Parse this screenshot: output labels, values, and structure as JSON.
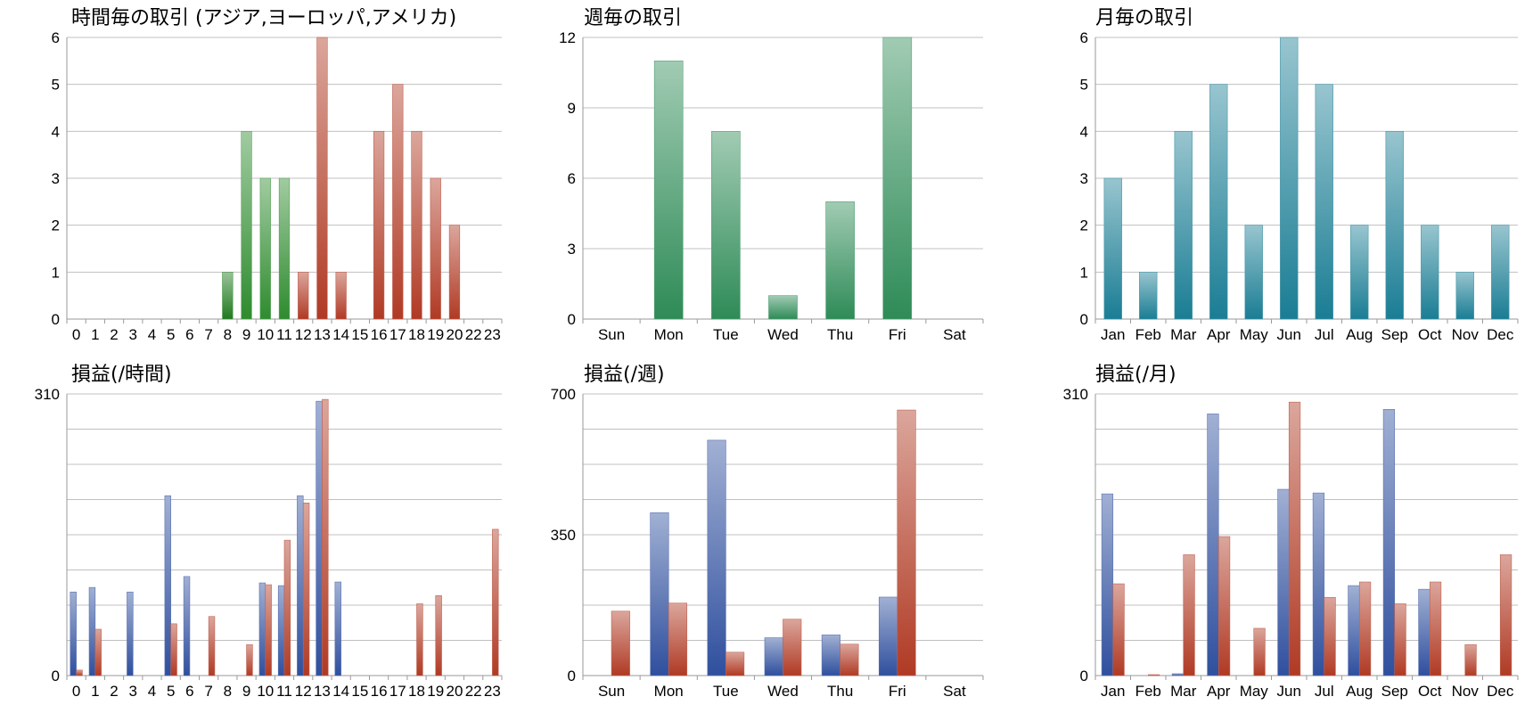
{
  "chart_data": [
    {
      "id": "hourly_trades",
      "type": "bar",
      "title": "時間毎の取引 (アジア,ヨーロッパ,アメリカ)",
      "categories": [
        "0",
        "1",
        "2",
        "3",
        "4",
        "5",
        "6",
        "7",
        "8",
        "9",
        "10",
        "11",
        "12",
        "13",
        "14",
        "15",
        "16",
        "17",
        "18",
        "19",
        "20",
        "22",
        "23"
      ],
      "values": [
        0,
        0,
        0,
        0,
        0,
        0,
        0,
        0,
        1,
        4,
        3,
        3,
        1,
        6,
        1,
        0,
        4,
        5,
        4,
        3,
        2,
        0,
        0
      ],
      "ylim": [
        0,
        6
      ],
      "yticks": [
        "0",
        "1",
        "2",
        "3",
        "4",
        "5",
        "6"
      ],
      "grid": true,
      "colors": {
        "asia": "#1f7a1f",
        "europe": "#2e8b2e",
        "america": "#b03a24"
      }
    },
    {
      "id": "weekly_trades",
      "type": "bar",
      "title": "週毎の取引",
      "categories": [
        "Sun",
        "Mon",
        "Tue",
        "Wed",
        "Thu",
        "Fri",
        "Sat"
      ],
      "values": [
        0,
        11,
        8,
        1,
        5,
        12,
        0
      ],
      "ylim": [
        0,
        12
      ],
      "yticks": [
        "0",
        "3",
        "6",
        "9",
        "12"
      ],
      "grid": true,
      "colors": {
        "bar": "#2e8b57"
      }
    },
    {
      "id": "monthly_trades",
      "type": "bar",
      "title": "月毎の取引",
      "categories": [
        "Jan",
        "Feb",
        "Mar",
        "Apr",
        "May",
        "Jun",
        "Jul",
        "Aug",
        "Sep",
        "Oct",
        "Nov",
        "Dec"
      ],
      "values": [
        3,
        1,
        4,
        5,
        2,
        6,
        5,
        2,
        4,
        2,
        1,
        2
      ],
      "ylim": [
        0,
        6
      ],
      "yticks": [
        "0",
        "1",
        "2",
        "3",
        "4",
        "5",
        "6"
      ],
      "grid": true,
      "colors": {
        "bar": "#1a7d94"
      }
    },
    {
      "id": "hourly_pl",
      "type": "bar",
      "title": "損益(/時間)",
      "categories": [
        "0",
        "1",
        "2",
        "3",
        "4",
        "5",
        "6",
        "7",
        "8",
        "9",
        "10",
        "11",
        "12",
        "13",
        "14",
        "15",
        "16",
        "17",
        "18",
        "19",
        "20",
        "22",
        "23"
      ],
      "series": [
        {
          "values": [
            92,
            97,
            0,
            92,
            0,
            198,
            109,
            0,
            0,
            0,
            102,
            99,
            198,
            302,
            103,
            0,
            0,
            0,
            0,
            0,
            0,
            0,
            0
          ]
        },
        {
          "values": [
            6,
            51,
            0,
            0,
            0,
            57,
            0,
            65,
            0,
            34,
            100,
            149,
            190,
            304,
            0,
            0,
            0,
            0,
            79,
            88,
            0,
            0,
            161
          ]
        }
      ],
      "ylim": [
        0,
        310
      ],
      "yticks": [
        "0",
        "310"
      ],
      "grid": true,
      "colors": {
        "profit": "#2f4f9e",
        "loss": "#b03a24"
      }
    },
    {
      "id": "weekly_pl",
      "type": "bar",
      "title": "損益(/週)",
      "categories": [
        "Sun",
        "Mon",
        "Tue",
        "Wed",
        "Thu",
        "Fri",
        "Sat"
      ],
      "series": [
        {
          "values": [
            0,
            405,
            585,
            94,
            101,
            195,
            0
          ]
        },
        {
          "values": [
            160,
            180,
            58,
            140,
            78,
            660,
            0
          ]
        }
      ],
      "ylim": [
        0,
        700
      ],
      "yticks": [
        "0",
        "350",
        "700"
      ],
      "grid": true,
      "colors": {
        "profit": "#2f4f9e",
        "loss": "#b03a24"
      }
    },
    {
      "id": "monthly_pl",
      "type": "bar",
      "title": "損益(/月)",
      "categories": [
        "Jan",
        "Feb",
        "Mar",
        "Apr",
        "May",
        "Jun",
        "Jul",
        "Aug",
        "Sep",
        "Oct",
        "Nov",
        "Dec"
      ],
      "series": [
        {
          "values": [
            200,
            0,
            2,
            288,
            0,
            205,
            201,
            99,
            293,
            95,
            0,
            0
          ]
        },
        {
          "values": [
            101,
            1,
            133,
            153,
            52,
            301,
            86,
            103,
            79,
            103,
            34,
            133
          ]
        }
      ],
      "ylim": [
        0,
        310
      ],
      "yticks": [
        "0",
        "310"
      ],
      "grid": true,
      "colors": {
        "profit": "#2f4f9e",
        "loss": "#b03a24"
      }
    }
  ]
}
